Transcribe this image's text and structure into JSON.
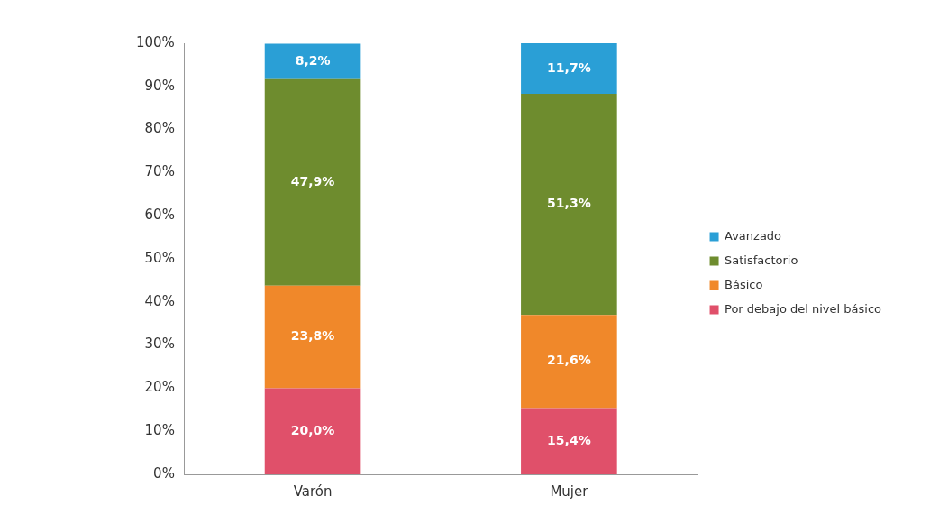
{
  "chart_data": {
    "type": "bar",
    "stacked": true,
    "categories": [
      "Varón",
      "Mujer"
    ],
    "series": [
      {
        "name": "Por debajo del nivel básico",
        "color": "#e0506a",
        "values": [
          20.0,
          15.4
        ],
        "value_labels": [
          "20,0%",
          "15,4%"
        ]
      },
      {
        "name": "Básico",
        "color": "#f0882a",
        "values": [
          23.8,
          21.6
        ],
        "value_labels": [
          "23,8%",
          "21,6%"
        ]
      },
      {
        "name": "Satisfactorio",
        "color": "#6e8c2e",
        "values": [
          47.9,
          51.3
        ],
        "value_labels": [
          "47,9%",
          "51,3%"
        ]
      },
      {
        "name": "Avanzado",
        "color": "#2a9fd6",
        "values": [
          8.2,
          11.7
        ],
        "value_labels": [
          "8,2%",
          "11,7%"
        ]
      }
    ],
    "ylim": [
      0,
      100
    ],
    "yticks": [
      {
        "value": 0,
        "label": "0%"
      },
      {
        "value": 10,
        "label": "10%"
      },
      {
        "value": 20,
        "label": "20%"
      },
      {
        "value": 30,
        "label": "30%"
      },
      {
        "value": 40,
        "label": "40%"
      },
      {
        "value": 50,
        "label": "50%"
      },
      {
        "value": 60,
        "label": "60%"
      },
      {
        "value": 70,
        "label": "70%"
      },
      {
        "value": 80,
        "label": "80%"
      },
      {
        "value": 90,
        "label": "90%"
      },
      {
        "value": 100,
        "label": "100%"
      }
    ],
    "grid": false,
    "legend": "right"
  }
}
